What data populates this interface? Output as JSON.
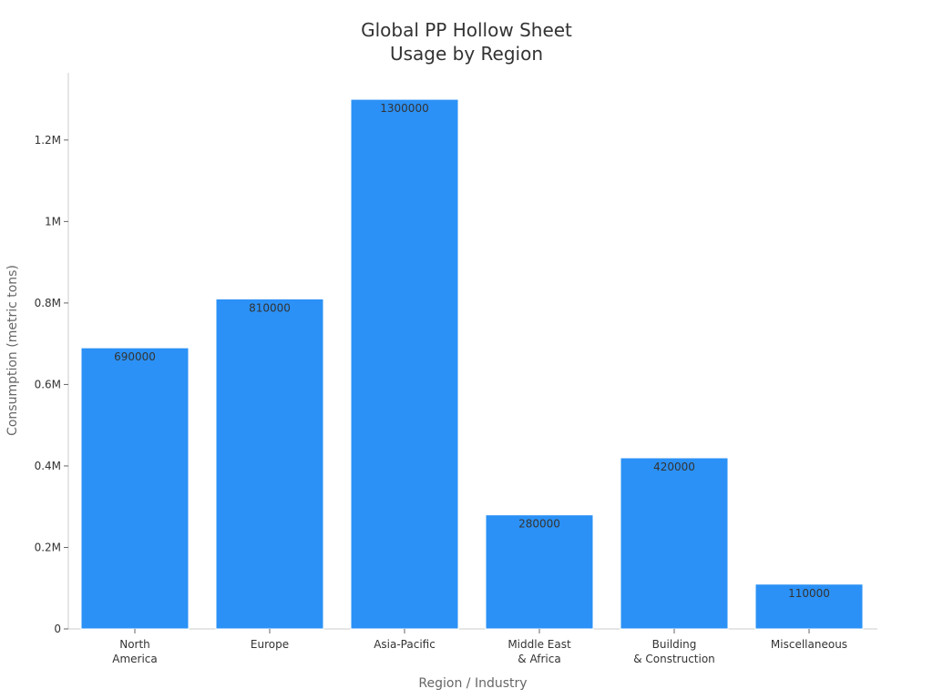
{
  "chart_data": {
    "type": "bar",
    "title": [
      "Global PP Hollow Sheet",
      "Usage by Region"
    ],
    "xlabel": "Region / Industry",
    "ylabel": "Consumption (metric tons)",
    "categories": [
      [
        "North",
        "America"
      ],
      [
        "Europe"
      ],
      [
        "Asia-Pacific"
      ],
      [
        "Middle East",
        "& Africa"
      ],
      [
        "Building",
        "& Construction"
      ],
      [
        "Miscellaneous"
      ]
    ],
    "values": [
      690000,
      810000,
      1300000,
      280000,
      420000,
      110000
    ],
    "data_labels": [
      "690000",
      "810000",
      "1300000",
      "280000",
      "420000",
      "110000"
    ],
    "ylim": [
      0,
      1365000
    ],
    "yticks": [
      0,
      200000,
      400000,
      600000,
      800000,
      1000000,
      1200000
    ],
    "ytick_labels": [
      "0",
      "0.2M",
      "0.4M",
      "0.6M",
      "0.8M",
      "1M",
      "1.2M"
    ],
    "bar_color": "#2b91f6",
    "bar_edge_color": "#ffffff",
    "grid": false,
    "legend": "none"
  }
}
